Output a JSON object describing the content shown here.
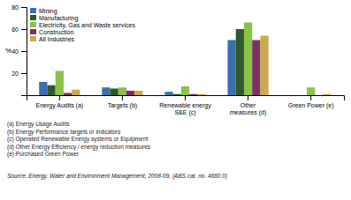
{
  "chart_data": {
    "type": "bar",
    "categories": [
      "Energy Audits (a)",
      "Targets (b)",
      "Renewable energy\nS&E (c)",
      "Other\nmeasures (d)",
      "Green Power (e)"
    ],
    "series": [
      {
        "name": "Mining",
        "color": "#3d6fad",
        "values": [
          12,
          7,
          3,
          50,
          0
        ]
      },
      {
        "name": "Manufacturing",
        "color": "#2d5a27",
        "values": [
          9,
          6,
          1,
          60,
          0
        ]
      },
      {
        "name": "Electricity, Gas and Waste services",
        "color": "#8dc04b",
        "values": [
          22,
          7,
          8,
          66,
          7
        ]
      },
      {
        "name": "Construction",
        "color": "#7b3060",
        "values": [
          2,
          4,
          1,
          50,
          0
        ]
      },
      {
        "name": "All Industries",
        "color": "#c8a94c",
        "values": [
          5,
          4,
          1,
          54,
          1
        ]
      }
    ],
    "ylabel": "%",
    "ylim": [
      0,
      80
    ],
    "yticks": [
      20,
      40,
      60,
      80
    ],
    "grid": false,
    "legend": "upper left",
    "annotations": [
      "(a) Energy Usage Audits",
      "(b) Energy Performance targets or indicators",
      "(c) Operated Renewable Energy systems or Equipment",
      "(d) Other Energy Efficiency / energy reduction measures",
      "(e) Purchased Green Power"
    ],
    "source": "Source: Energy, Water and Environment Management, 2008-09, (ABS cat. no. 4660.0)"
  }
}
